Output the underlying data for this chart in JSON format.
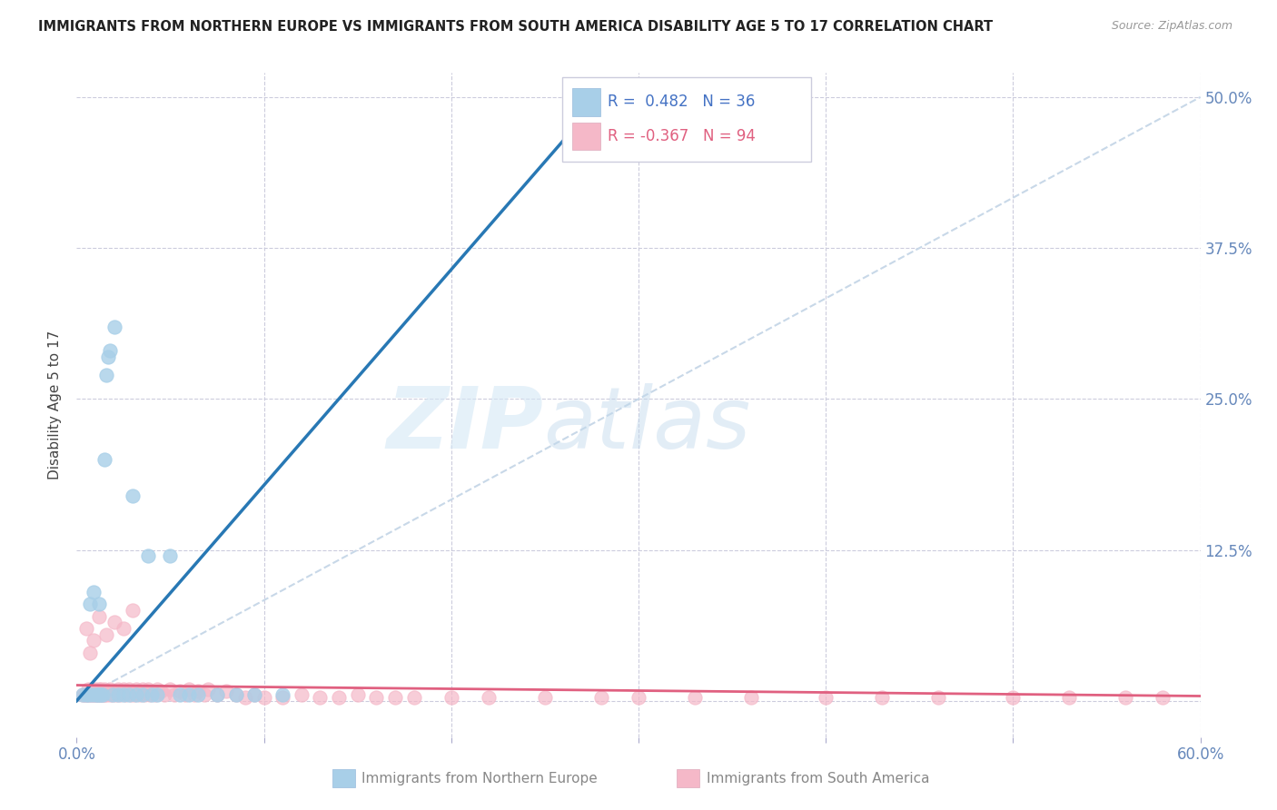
{
  "title": "IMMIGRANTS FROM NORTHERN EUROPE VS IMMIGRANTS FROM SOUTH AMERICA DISABILITY AGE 5 TO 17 CORRELATION CHART",
  "source": "Source: ZipAtlas.com",
  "ylabel": "Disability Age 5 to 17",
  "xlim": [
    0.0,
    0.6
  ],
  "ylim": [
    -0.03,
    0.52
  ],
  "R_blue": 0.482,
  "N_blue": 36,
  "R_pink": -0.367,
  "N_pink": 94,
  "color_blue": "#a8cfe8",
  "color_pink": "#f5b8c8",
  "color_blue_line": "#2878b4",
  "color_pink_line": "#e06080",
  "color_diag": "#c8d8e8",
  "watermark_zip": "ZIP",
  "watermark_atlas": "atlas",
  "blue_scatter_x": [
    0.003,
    0.005,
    0.006,
    0.007,
    0.008,
    0.009,
    0.01,
    0.011,
    0.012,
    0.012,
    0.013,
    0.014,
    0.015,
    0.016,
    0.017,
    0.018,
    0.019,
    0.02,
    0.022,
    0.025,
    0.028,
    0.03,
    0.032,
    0.035,
    0.038,
    0.04,
    0.043,
    0.05,
    0.055,
    0.06,
    0.065,
    0.075,
    0.085,
    0.095,
    0.11,
    0.28
  ],
  "blue_scatter_y": [
    0.005,
    0.005,
    0.005,
    0.08,
    0.005,
    0.09,
    0.005,
    0.005,
    0.08,
    0.005,
    0.005,
    0.005,
    0.2,
    0.27,
    0.285,
    0.29,
    0.005,
    0.31,
    0.005,
    0.005,
    0.005,
    0.17,
    0.005,
    0.005,
    0.12,
    0.005,
    0.005,
    0.12,
    0.005,
    0.005,
    0.005,
    0.005,
    0.005,
    0.005,
    0.005,
    0.5
  ],
  "pink_scatter_x": [
    0.003,
    0.004,
    0.005,
    0.006,
    0.006,
    0.007,
    0.008,
    0.008,
    0.009,
    0.01,
    0.01,
    0.011,
    0.012,
    0.012,
    0.013,
    0.013,
    0.014,
    0.015,
    0.015,
    0.016,
    0.017,
    0.018,
    0.018,
    0.019,
    0.02,
    0.021,
    0.022,
    0.023,
    0.024,
    0.025,
    0.026,
    0.027,
    0.028,
    0.029,
    0.03,
    0.031,
    0.032,
    0.033,
    0.034,
    0.035,
    0.036,
    0.037,
    0.038,
    0.039,
    0.04,
    0.042,
    0.043,
    0.045,
    0.047,
    0.05,
    0.052,
    0.055,
    0.058,
    0.06,
    0.063,
    0.065,
    0.068,
    0.07,
    0.075,
    0.08,
    0.085,
    0.09,
    0.095,
    0.1,
    0.11,
    0.12,
    0.13,
    0.14,
    0.15,
    0.16,
    0.17,
    0.18,
    0.2,
    0.22,
    0.25,
    0.28,
    0.3,
    0.33,
    0.36,
    0.4,
    0.43,
    0.46,
    0.5,
    0.53,
    0.56,
    0.58,
    0.005,
    0.007,
    0.009,
    0.012,
    0.016,
    0.02,
    0.025,
    0.03
  ],
  "pink_scatter_y": [
    0.005,
    0.005,
    0.005,
    0.01,
    0.005,
    0.005,
    0.01,
    0.005,
    0.005,
    0.01,
    0.005,
    0.005,
    0.01,
    0.005,
    0.01,
    0.005,
    0.005,
    0.01,
    0.005,
    0.005,
    0.008,
    0.005,
    0.01,
    0.005,
    0.008,
    0.005,
    0.01,
    0.005,
    0.008,
    0.01,
    0.005,
    0.008,
    0.01,
    0.005,
    0.008,
    0.005,
    0.01,
    0.008,
    0.005,
    0.01,
    0.005,
    0.008,
    0.01,
    0.005,
    0.008,
    0.005,
    0.01,
    0.008,
    0.005,
    0.01,
    0.005,
    0.008,
    0.005,
    0.01,
    0.005,
    0.008,
    0.005,
    0.01,
    0.005,
    0.008,
    0.005,
    0.003,
    0.005,
    0.003,
    0.003,
    0.005,
    0.003,
    0.003,
    0.005,
    0.003,
    0.003,
    0.003,
    0.003,
    0.003,
    0.003,
    0.003,
    0.003,
    0.003,
    0.003,
    0.003,
    0.003,
    0.003,
    0.003,
    0.003,
    0.003,
    0.003,
    0.06,
    0.04,
    0.05,
    0.07,
    0.055,
    0.065,
    0.06,
    0.075
  ],
  "blue_line_x": [
    0.0,
    0.28
  ],
  "blue_line_y": [
    0.0,
    0.5
  ],
  "pink_line_x": [
    0.0,
    0.6
  ],
  "pink_line_y": [
    0.013,
    0.004
  ]
}
